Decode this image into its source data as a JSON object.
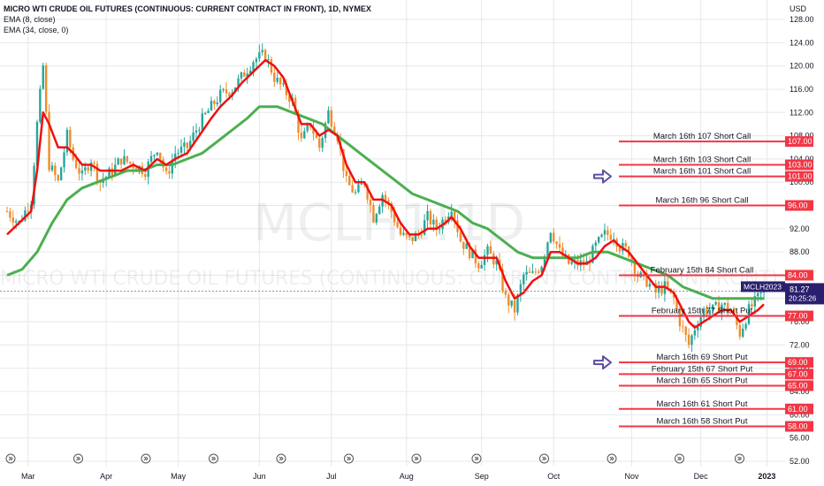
{
  "header": {
    "title": "MICRO WTI CRUDE OIL FUTURES (CONTINUOUS: CURRENT CONTRACT IN FRONT), 1D, NYMEX",
    "indicators": [
      "EMA (8, close)",
      "EMA (34, close, 0)"
    ]
  },
  "watermark": {
    "symbol": "MCLH1!1D",
    "name": "MICRO WTI CRUDE OIL FUTURES (CONTINUOUS: CURRENT CONTRACT IN FRONT)"
  },
  "colors": {
    "ema8": "#f01010",
    "ema34": "#4caf50",
    "up": "#26a69a",
    "down": "#ef8c2b",
    "level": "#f23645",
    "symbol_tag": "#2a1f6e",
    "arrow": "#5c4ea3"
  },
  "chart_data": {
    "type": "candlestick",
    "currency": "USD",
    "ylim": [
      52,
      128
    ],
    "y_ticks": [
      52,
      56,
      60,
      64,
      68,
      72,
      76,
      80,
      84,
      88,
      92,
      96,
      100,
      104,
      108,
      112,
      116,
      120,
      124,
      128
    ],
    "x_ticks": [
      {
        "label": "Mar",
        "day": 7
      },
      {
        "label": "Apr",
        "day": 33
      },
      {
        "label": "May",
        "day": 57
      },
      {
        "label": "Jun",
        "day": 84
      },
      {
        "label": "Jul",
        "day": 108
      },
      {
        "label": "Aug",
        "day": 133
      },
      {
        "label": "Sep",
        "day": 158
      },
      {
        "label": "Oct",
        "day": 182
      },
      {
        "label": "Nov",
        "day": 208
      },
      {
        "label": "Dec",
        "day": 231
      },
      {
        "label": "2023",
        "day": 253
      }
    ],
    "price_path": [
      [
        0,
        95
      ],
      [
        4,
        93
      ],
      [
        8,
        97
      ],
      [
        10,
        110
      ],
      [
        12,
        120
      ],
      [
        14,
        103
      ],
      [
        17,
        100
      ],
      [
        20,
        108
      ],
      [
        22,
        104
      ],
      [
        25,
        101
      ],
      [
        28,
        104
      ],
      [
        31,
        100
      ],
      [
        35,
        102
      ],
      [
        38,
        104
      ],
      [
        42,
        103
      ],
      [
        46,
        102
      ],
      [
        50,
        106
      ],
      [
        53,
        101
      ],
      [
        56,
        105
      ],
      [
        60,
        106
      ],
      [
        64,
        110
      ],
      [
        68,
        113
      ],
      [
        71,
        115
      ],
      [
        75,
        116
      ],
      [
        78,
        118
      ],
      [
        82,
        121
      ],
      [
        86,
        122
      ],
      [
        89,
        118
      ],
      [
        92,
        116
      ],
      [
        95,
        114
      ],
      [
        98,
        107
      ],
      [
        101,
        110
      ],
      [
        104,
        106
      ],
      [
        107,
        112
      ],
      [
        110,
        108
      ],
      [
        113,
        100
      ],
      [
        116,
        98
      ],
      [
        119,
        100
      ],
      [
        122,
        94
      ],
      [
        125,
        98
      ],
      [
        128,
        95
      ],
      [
        131,
        91
      ],
      [
        134,
        90
      ],
      [
        137,
        91
      ],
      [
        140,
        94
      ],
      [
        143,
        92
      ],
      [
        146,
        94
      ],
      [
        148,
        96
      ],
      [
        151,
        90
      ],
      [
        154,
        88
      ],
      [
        157,
        86
      ],
      [
        160,
        88
      ],
      [
        163,
        86
      ],
      [
        166,
        80
      ],
      [
        169,
        78
      ],
      [
        172,
        84
      ],
      [
        175,
        84
      ],
      [
        178,
        86
      ],
      [
        181,
        92
      ],
      [
        184,
        88
      ],
      [
        187,
        86
      ],
      [
        190,
        86
      ],
      [
        193,
        86
      ],
      [
        196,
        89
      ],
      [
        199,
        91
      ],
      [
        202,
        91
      ],
      [
        204,
        89
      ],
      [
        207,
        88
      ],
      [
        210,
        84
      ],
      [
        213,
        83
      ],
      [
        216,
        81
      ],
      [
        219,
        82
      ],
      [
        222,
        80
      ],
      [
        224,
        76
      ],
      [
        227,
        72
      ],
      [
        229,
        75
      ],
      [
        232,
        78
      ],
      [
        235,
        78
      ],
      [
        238,
        79
      ],
      [
        241,
        78
      ],
      [
        244,
        74
      ],
      [
        247,
        78
      ],
      [
        250,
        80
      ],
      [
        252,
        81.27
      ]
    ],
    "ema_8_path": [
      [
        0,
        91
      ],
      [
        4,
        93
      ],
      [
        8,
        95
      ],
      [
        10,
        102
      ],
      [
        12,
        112
      ],
      [
        14,
        110
      ],
      [
        17,
        106
      ],
      [
        20,
        106
      ],
      [
        22,
        105
      ],
      [
        25,
        103
      ],
      [
        28,
        103
      ],
      [
        31,
        102
      ],
      [
        35,
        102
      ],
      [
        38,
        102
      ],
      [
        42,
        103
      ],
      [
        46,
        102
      ],
      [
        50,
        104
      ],
      [
        53,
        103
      ],
      [
        56,
        104
      ],
      [
        60,
        105
      ],
      [
        64,
        108
      ],
      [
        68,
        111
      ],
      [
        71,
        113
      ],
      [
        75,
        115
      ],
      [
        78,
        117
      ],
      [
        82,
        119
      ],
      [
        86,
        121
      ],
      [
        89,
        120
      ],
      [
        92,
        118
      ],
      [
        95,
        114
      ],
      [
        98,
        110
      ],
      [
        101,
        110
      ],
      [
        104,
        108
      ],
      [
        107,
        109
      ],
      [
        110,
        108
      ],
      [
        113,
        103
      ],
      [
        116,
        100
      ],
      [
        119,
        100
      ],
      [
        122,
        97
      ],
      [
        125,
        97
      ],
      [
        128,
        96
      ],
      [
        131,
        93
      ],
      [
        134,
        91
      ],
      [
        137,
        91
      ],
      [
        140,
        92
      ],
      [
        143,
        92
      ],
      [
        146,
        93
      ],
      [
        148,
        94
      ],
      [
        151,
        92
      ],
      [
        154,
        89
      ],
      [
        157,
        87
      ],
      [
        160,
        87
      ],
      [
        163,
        87
      ],
      [
        166,
        83
      ],
      [
        169,
        80
      ],
      [
        172,
        81
      ],
      [
        175,
        83
      ],
      [
        178,
        84
      ],
      [
        181,
        88
      ],
      [
        184,
        88
      ],
      [
        187,
        87
      ],
      [
        190,
        86
      ],
      [
        193,
        86
      ],
      [
        196,
        87
      ],
      [
        199,
        89
      ],
      [
        202,
        90
      ],
      [
        204,
        89
      ],
      [
        207,
        88
      ],
      [
        210,
        86
      ],
      [
        213,
        84
      ],
      [
        216,
        82
      ],
      [
        219,
        82
      ],
      [
        222,
        81
      ],
      [
        224,
        79
      ],
      [
        227,
        76
      ],
      [
        229,
        75
      ],
      [
        232,
        76
      ],
      [
        235,
        77
      ],
      [
        238,
        78
      ],
      [
        241,
        78
      ],
      [
        244,
        76
      ],
      [
        247,
        77
      ],
      [
        250,
        78
      ],
      [
        252,
        79
      ]
    ],
    "ema_34_path": [
      [
        0,
        84
      ],
      [
        5,
        85
      ],
      [
        10,
        88
      ],
      [
        15,
        93
      ],
      [
        20,
        97
      ],
      [
        25,
        99
      ],
      [
        30,
        100
      ],
      [
        35,
        101
      ],
      [
        40,
        102
      ],
      [
        45,
        102
      ],
      [
        50,
        103
      ],
      [
        55,
        103
      ],
      [
        60,
        104
      ],
      [
        65,
        105
      ],
      [
        70,
        107
      ],
      [
        75,
        109
      ],
      [
        80,
        111
      ],
      [
        84,
        113
      ],
      [
        87,
        113
      ],
      [
        90,
        113
      ],
      [
        95,
        112
      ],
      [
        100,
        111
      ],
      [
        105,
        110
      ],
      [
        110,
        108
      ],
      [
        115,
        106
      ],
      [
        120,
        104
      ],
      [
        125,
        102
      ],
      [
        130,
        100
      ],
      [
        135,
        98
      ],
      [
        140,
        97
      ],
      [
        145,
        96
      ],
      [
        150,
        95
      ],
      [
        155,
        93
      ],
      [
        160,
        92
      ],
      [
        165,
        90
      ],
      [
        170,
        88
      ],
      [
        175,
        87
      ],
      [
        180,
        87
      ],
      [
        185,
        87
      ],
      [
        190,
        87
      ],
      [
        195,
        88
      ],
      [
        200,
        88
      ],
      [
        205,
        87
      ],
      [
        210,
        86
      ],
      [
        215,
        85
      ],
      [
        220,
        84
      ],
      [
        225,
        82
      ],
      [
        230,
        81
      ],
      [
        235,
        80
      ],
      [
        240,
        80
      ],
      [
        245,
        80
      ],
      [
        250,
        80
      ],
      [
        252,
        80
      ]
    ],
    "last_price": {
      "symbol": "MCLH2023",
      "value": "81.27",
      "countdown": "20:25:26"
    },
    "levels": [
      {
        "label": "March 16th 107 Short Call",
        "tag": "107.00",
        "value": 107,
        "arrow": false
      },
      {
        "label": "March 16th 103 Short Call",
        "tag": "103.00",
        "value": 103,
        "arrow": false
      },
      {
        "label": "March 16th 101 Short Call",
        "tag": "101.00",
        "value": 101,
        "arrow": true
      },
      {
        "label": "March 16th 96 Short Call",
        "tag": "96.00",
        "value": 96,
        "arrow": false
      },
      {
        "label": "February 15th 84 Short Call",
        "tag": "84.00",
        "value": 84,
        "arrow": false
      },
      {
        "label": "February 15th 77 Short Put",
        "tag": "77.00",
        "value": 77,
        "arrow": false
      },
      {
        "label": "March 16th 69 Short Put",
        "tag": "69.00",
        "value": 69,
        "arrow": true
      },
      {
        "label": "February 15th 67 Short Put",
        "tag": "67.00",
        "value": 67,
        "arrow": false
      },
      {
        "label": "March 16th 65 Short Put",
        "tag": "65.00",
        "value": 65,
        "arrow": false
      },
      {
        "label": "March 16th 61 Short Put",
        "tag": "61.00",
        "value": 61,
        "arrow": false
      },
      {
        "label": "March 16th 58 Short Put",
        "tag": "58.00",
        "value": 58,
        "arrow": false
      }
    ]
  }
}
